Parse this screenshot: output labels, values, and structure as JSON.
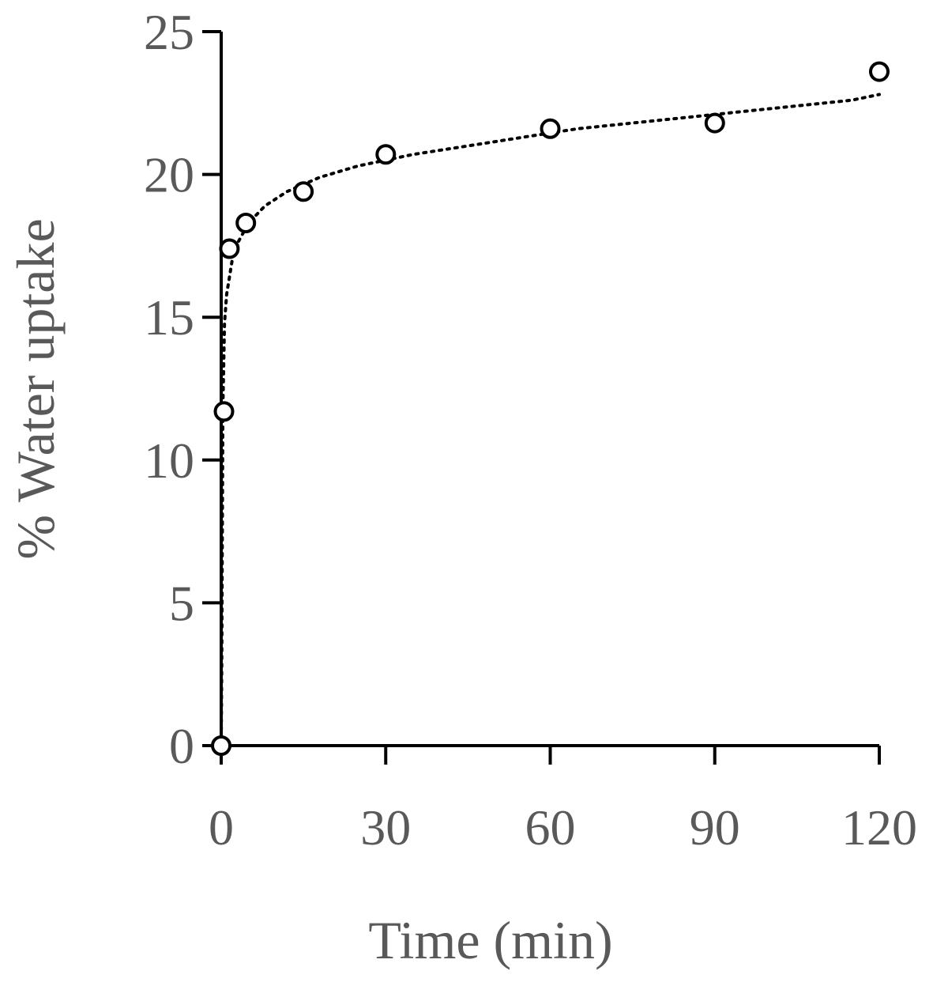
{
  "chart_data": {
    "type": "scatter",
    "title": "",
    "xlabel": "Time (min)",
    "ylabel": "% Water uptake",
    "xlim": [
      0,
      120
    ],
    "ylim": [
      0,
      25
    ],
    "xticks": [
      0,
      30,
      60,
      90,
      120
    ],
    "yticks": [
      0,
      5,
      10,
      15,
      20,
      25
    ],
    "grid": false,
    "legend": "none",
    "series": [
      {
        "marker": "open-circle",
        "x": [
          0,
          0.5,
          1.5,
          4.5,
          15,
          30,
          60,
          90,
          120
        ],
        "y": [
          0,
          11.7,
          17.4,
          18.3,
          19.4,
          20.7,
          21.6,
          21.8,
          23.6
        ]
      }
    ],
    "trendline": {
      "style": "dotted",
      "type": "power",
      "x": [
        0.1,
        0.3,
        0.6,
        1,
        2,
        3,
        5,
        8,
        12,
        18,
        25,
        35,
        45,
        55,
        65,
        75,
        85,
        95,
        105,
        115,
        120
      ],
      "y": [
        3.0,
        11.8,
        14.8,
        15.8,
        17.0,
        17.6,
        18.3,
        18.9,
        19.4,
        19.9,
        20.3,
        20.7,
        21.0,
        21.3,
        21.6,
        21.8,
        22.0,
        22.2,
        22.4,
        22.6,
        22.8
      ]
    }
  }
}
